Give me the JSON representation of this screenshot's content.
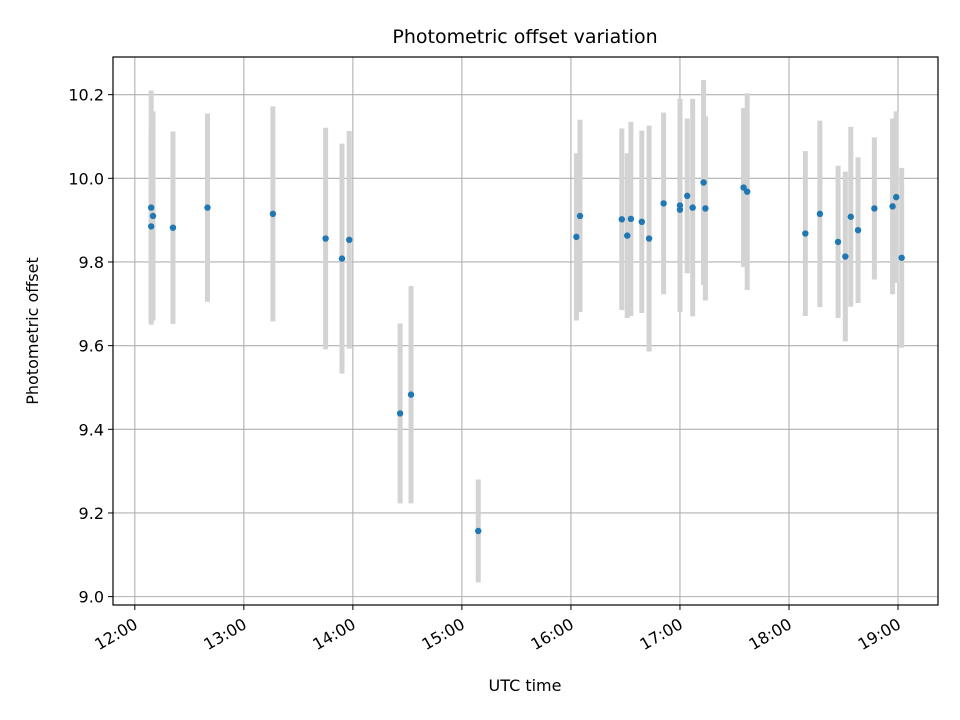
{
  "chart_data": {
    "type": "scatter",
    "title": "Photometric offset variation",
    "xlabel": "UTC time",
    "ylabel": "Photometric offset",
    "x_tick_labels": [
      "12:00",
      "13:00",
      "14:00",
      "15:00",
      "16:00",
      "17:00",
      "18:00",
      "19:00"
    ],
    "y_tick_labels": [
      "9.0",
      "9.2",
      "9.4",
      "9.6",
      "9.8",
      "10.0",
      "10.2"
    ],
    "xlim": [
      "11:48",
      "19:22"
    ],
    "ylim": [
      8.98,
      10.29
    ],
    "grid": true,
    "point_color": "#1f77b4",
    "errorbar_color": "#d3d3d3",
    "points": [
      {
        "x": "12:09",
        "y": 9.93,
        "yerr": 0.28
      },
      {
        "x": "12:09",
        "y": 9.885,
        "yerr": 0.23
      },
      {
        "x": "12:10",
        "y": 9.91,
        "yerr": 0.25
      },
      {
        "x": "12:21",
        "y": 9.882,
        "yerr": 0.23
      },
      {
        "x": "12:40",
        "y": 9.93,
        "yerr": 0.225
      },
      {
        "x": "13:16",
        "y": 9.915,
        "yerr": 0.257
      },
      {
        "x": "13:45",
        "y": 9.856,
        "yerr": 0.265
      },
      {
        "x": "13:54",
        "y": 9.808,
        "yerr": 0.275
      },
      {
        "x": "13:58",
        "y": 9.853,
        "yerr": 0.26
      },
      {
        "x": "14:26",
        "y": 9.438,
        "yerr": 0.215
      },
      {
        "x": "14:32",
        "y": 9.483,
        "yerr": 0.26
      },
      {
        "x": "15:09",
        "y": 9.157,
        "yerr": 0.123
      },
      {
        "x": "16:03",
        "y": 9.86,
        "yerr": 0.2
      },
      {
        "x": "16:05",
        "y": 9.91,
        "yerr": 0.23
      },
      {
        "x": "16:28",
        "y": 9.902,
        "yerr": 0.217
      },
      {
        "x": "16:31",
        "y": 9.863,
        "yerr": 0.197
      },
      {
        "x": "16:33",
        "y": 9.903,
        "yerr": 0.232
      },
      {
        "x": "16:39",
        "y": 9.896,
        "yerr": 0.218
      },
      {
        "x": "16:43",
        "y": 9.856,
        "yerr": 0.27
      },
      {
        "x": "16:51",
        "y": 9.94,
        "yerr": 0.217
      },
      {
        "x": "17:00",
        "y": 9.925,
        "yerr": 0.225
      },
      {
        "x": "17:00",
        "y": 9.935,
        "yerr": 0.255
      },
      {
        "x": "17:04",
        "y": 9.958,
        "yerr": 0.185
      },
      {
        "x": "17:07",
        "y": 9.93,
        "yerr": 0.26
      },
      {
        "x": "17:13",
        "y": 9.99,
        "yerr": 0.245
      },
      {
        "x": "17:14",
        "y": 9.928,
        "yerr": 0.22
      },
      {
        "x": "17:35",
        "y": 9.978,
        "yerr": 0.19
      },
      {
        "x": "17:37",
        "y": 9.968,
        "yerr": 0.235
      },
      {
        "x": "18:09",
        "y": 9.868,
        "yerr": 0.197
      },
      {
        "x": "18:17",
        "y": 9.915,
        "yerr": 0.223
      },
      {
        "x": "18:27",
        "y": 9.848,
        "yerr": 0.182
      },
      {
        "x": "18:31",
        "y": 9.813,
        "yerr": 0.203
      },
      {
        "x": "18:34",
        "y": 9.908,
        "yerr": 0.215
      },
      {
        "x": "18:38",
        "y": 9.876,
        "yerr": 0.174
      },
      {
        "x": "18:47",
        "y": 9.928,
        "yerr": 0.17
      },
      {
        "x": "18:57",
        "y": 9.933,
        "yerr": 0.21
      },
      {
        "x": "18:59",
        "y": 9.955,
        "yerr": 0.205
      },
      {
        "x": "19:02",
        "y": 9.81,
        "yerr": 0.215
      }
    ]
  }
}
